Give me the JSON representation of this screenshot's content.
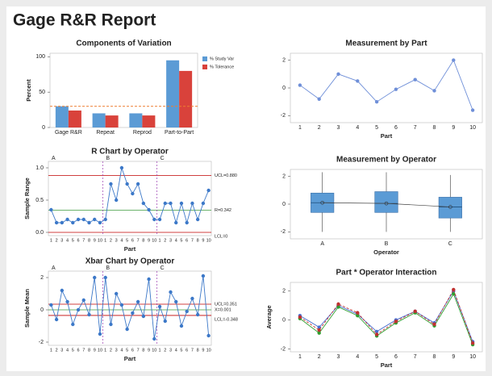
{
  "title": "Gage R&R Report",
  "chart_data": [
    {
      "type": "bar",
      "title": "Components of Variation",
      "ylabel": "Percent",
      "categories": [
        "Gage R&R",
        "Repeat",
        "Reprod",
        "Part-to-Part"
      ],
      "series": [
        {
          "name": "% Study Var",
          "color": "#5b9bd5",
          "values": [
            30,
            20,
            20,
            95
          ]
        },
        {
          "name": "% Tolerance",
          "color": "#d9423b",
          "values": [
            24,
            17,
            17,
            80
          ]
        }
      ],
      "reference_line": {
        "value": 30,
        "color": "#ed7d31"
      },
      "ylim": [
        0,
        105
      ],
      "yticks": [
        0,
        50,
        100
      ]
    },
    {
      "type": "line",
      "title": "Measurement by Part",
      "xlabel": "Part",
      "categories": [
        "1",
        "2",
        "3",
        "4",
        "5",
        "6",
        "7",
        "8",
        "9",
        "10"
      ],
      "values": [
        0.2,
        -0.8,
        1.0,
        0.5,
        -1.0,
        -0.1,
        0.6,
        -0.2,
        2.0,
        -1.6
      ],
      "color": "#6f8fd8",
      "ylim": [
        -2.5,
        2.5
      ],
      "yticks": [
        -2,
        0,
        2
      ]
    },
    {
      "type": "control",
      "title": "R Chart by Operator",
      "xlabel": "Part",
      "ylabel": "Sample Range",
      "sections": [
        "A",
        "B",
        "C"
      ],
      "categories": [
        "1",
        "2",
        "3",
        "4",
        "5",
        "6",
        "7",
        "8",
        "9",
        "10",
        "1",
        "2",
        "3",
        "4",
        "5",
        "6",
        "7",
        "8",
        "9",
        "10",
        "1",
        "2",
        "3",
        "4",
        "5",
        "6",
        "7",
        "8",
        "9",
        "10"
      ],
      "values": [
        0.35,
        0.15,
        0.15,
        0.2,
        0.15,
        0.2,
        0.2,
        0.15,
        0.2,
        0.15,
        0.2,
        0.75,
        0.5,
        1.0,
        0.75,
        0.6,
        0.75,
        0.45,
        0.35,
        0.2,
        0.2,
        0.45,
        0.45,
        0.15,
        0.45,
        0.15,
        0.45,
        0.2,
        0.45,
        0.65
      ],
      "color": "#3c78c8",
      "control_lines": [
        {
          "label": "UCL=0.880",
          "value": 0.88,
          "color": "#c00000"
        },
        {
          "label": "R=0.342",
          "value": 0.342,
          "color": "#3c9a3c"
        },
        {
          "label": "LCL=0",
          "value": 0,
          "color": "#c00000"
        }
      ],
      "ylim": [
        -0.05,
        1.1
      ],
      "yticks": [
        {
          "value": 0,
          "label": "0.0"
        },
        {
          "value": 0.5,
          "label": "0.5"
        },
        {
          "value": 1.0,
          "label": "1.0"
        }
      ]
    },
    {
      "type": "box",
      "title": "Measurement by Operator",
      "xlabel": "Operator",
      "categories": [
        "A",
        "B",
        "C"
      ],
      "boxes": [
        {
          "min": -2.0,
          "q1": -0.6,
          "median": 0.1,
          "q3": 0.8,
          "max": 2.3
        },
        {
          "min": -2.0,
          "q1": -0.6,
          "median": 0.05,
          "q3": 0.9,
          "max": 2.3
        },
        {
          "min": -2.0,
          "q1": -1.0,
          "median": -0.2,
          "q3": 0.5,
          "max": 2.1
        }
      ],
      "means": [
        0.1,
        0.05,
        -0.2
      ],
      "color": "#5b9bd5",
      "ylim": [
        -2.5,
        2.5
      ],
      "yticks": [
        -2,
        0,
        2
      ]
    },
    {
      "type": "control",
      "title": "Xbar Chart by Operator",
      "xlabel": "Part",
      "ylabel": "Sample Mean",
      "sections": [
        "A",
        "B",
        "C"
      ],
      "categories": [
        "1",
        "2",
        "3",
        "4",
        "5",
        "6",
        "7",
        "8",
        "9",
        "10",
        "1",
        "2",
        "3",
        "4",
        "5",
        "6",
        "7",
        "8",
        "9",
        "10",
        "1",
        "2",
        "3",
        "4",
        "5",
        "6",
        "7",
        "8",
        "9",
        "10"
      ],
      "values": [
        0.3,
        -0.6,
        1.2,
        0.5,
        -0.9,
        0.0,
        0.6,
        -0.3,
        2.0,
        -1.5,
        2.0,
        -0.9,
        1.0,
        0.3,
        -1.2,
        -0.2,
        0.5,
        -0.4,
        1.9,
        -1.8,
        0.2,
        -0.7,
        1.1,
        0.5,
        -1.0,
        -0.1,
        0.7,
        -0.3,
        2.1,
        -1.6
      ],
      "color": "#3c78c8",
      "control_lines": [
        {
          "label": "UCL=0.351",
          "value": 0.351,
          "color": "#c00000"
        },
        {
          "label": "X=0.001",
          "value": 0.001,
          "color": "#3c9a3c"
        },
        {
          "label": "LCL=-0.348",
          "value": -0.348,
          "color": "#c00000"
        }
      ],
      "ylim": [
        -2.2,
        2.4
      ],
      "yticks": [
        -2,
        0,
        2
      ]
    },
    {
      "type": "line",
      "title": "Part * Operator Interaction",
      "xlabel": "Part",
      "ylabel": "Average",
      "categories": [
        "1",
        "2",
        "3",
        "4",
        "5",
        "6",
        "7",
        "8",
        "9",
        "10"
      ],
      "series": [
        {
          "color": "#4a6fd0",
          "values": [
            0.3,
            -0.5,
            1.0,
            0.4,
            -0.8,
            0.0,
            0.6,
            -0.2,
            2.0,
            -1.5
          ]
        },
        {
          "color": "#30a030",
          "values": [
            0.1,
            -0.9,
            0.9,
            0.3,
            -1.1,
            -0.2,
            0.5,
            -0.4,
            1.8,
            -1.7
          ]
        },
        {
          "color": "#c03030",
          "values": [
            0.2,
            -0.7,
            1.1,
            0.5,
            -1.0,
            -0.1,
            0.6,
            -0.3,
            2.1,
            -1.6
          ]
        }
      ],
      "ylim": [
        -2.2,
        2.6
      ],
      "yticks": [
        -2,
        0,
        2
      ]
    }
  ]
}
